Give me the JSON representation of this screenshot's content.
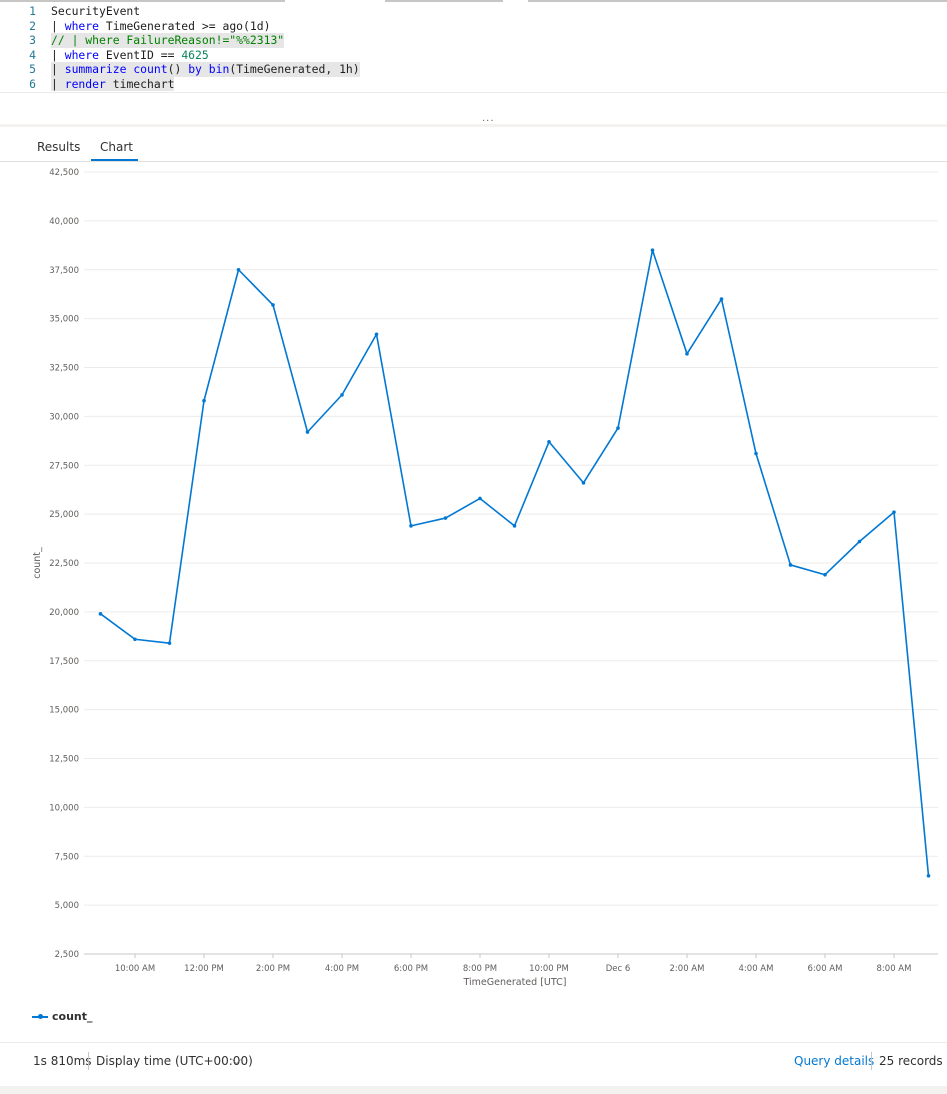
{
  "query": {
    "lines": [
      {
        "num": "1",
        "tokens": [
          {
            "t": "SecurityEvent",
            "c": "tx"
          }
        ]
      },
      {
        "num": "2",
        "tokens": [
          {
            "t": "| ",
            "c": "tx"
          },
          {
            "t": "where",
            "c": "kw"
          },
          {
            "t": " TimeGenerated >= ago(1d)",
            "c": "tx"
          }
        ]
      },
      {
        "num": "3",
        "tokens": [
          {
            "t": "// | where FailureReason!=\"%%2313\"",
            "c": "cm"
          }
        ],
        "highlight": true
      },
      {
        "num": "4",
        "tokens": [
          {
            "t": "| ",
            "c": "tx"
          },
          {
            "t": "where",
            "c": "kw"
          },
          {
            "t": " EventID == ",
            "c": "tx"
          },
          {
            "t": "4625",
            "c": "num"
          }
        ]
      },
      {
        "num": "5",
        "tokens": [
          {
            "t": "| ",
            "c": "tx"
          },
          {
            "t": "summarize",
            "c": "kw"
          },
          {
            "t": " ",
            "c": "tx"
          },
          {
            "t": "count",
            "c": "kw"
          },
          {
            "t": "() ",
            "c": "tx"
          },
          {
            "t": "by",
            "c": "kw"
          },
          {
            "t": " ",
            "c": "tx"
          },
          {
            "t": "bin",
            "c": "kw"
          },
          {
            "t": "(TimeGenerated, 1h)",
            "c": "tx"
          }
        ],
        "highlight": true
      },
      {
        "num": "6",
        "tokens": [
          {
            "t": "| ",
            "c": "tx"
          },
          {
            "t": "render",
            "c": "kw"
          },
          {
            "t": " timechart",
            "c": "tx"
          }
        ],
        "highlight": true
      }
    ]
  },
  "tabs": [
    {
      "label": "Results",
      "active": false
    },
    {
      "label": "Chart",
      "active": true
    }
  ],
  "chart_data": {
    "type": "line",
    "xlabel": "TimeGenerated [UTC]",
    "ylabel": "count_",
    "ylim": [
      2500,
      42500
    ],
    "yticks": [
      "2,500",
      "5,000",
      "7,500",
      "10,000",
      "12,500",
      "15,000",
      "17,500",
      "20,000",
      "22,500",
      "25,000",
      "27,500",
      "30,000",
      "32,500",
      "35,000",
      "37,500",
      "40,000",
      "42,500"
    ],
    "xticks": [
      "10:00 AM",
      "12:00 PM",
      "2:00 PM",
      "4:00 PM",
      "6:00 PM",
      "8:00 PM",
      "10:00 PM",
      "Dec 6",
      "2:00 AM",
      "4:00 AM",
      "6:00 AM",
      "8:00 AM"
    ],
    "grid": true,
    "legend_position": "bottom-left",
    "series": [
      {
        "name": "count_",
        "color": "#0078d4",
        "values": [
          19900,
          18600,
          18400,
          30800,
          37500,
          35700,
          29200,
          31100,
          34200,
          24400,
          24800,
          25800,
          24400,
          28700,
          26600,
          29400,
          38500,
          33200,
          36000,
          28100,
          22400,
          21900,
          23600,
          25100,
          6500
        ]
      }
    ]
  },
  "footer": {
    "duration": "1s 810ms",
    "display_time": "Display time (UTC+00:00)",
    "query_details": "Query details",
    "records": "25 records"
  },
  "colors": {
    "accent": "#0078d4"
  }
}
